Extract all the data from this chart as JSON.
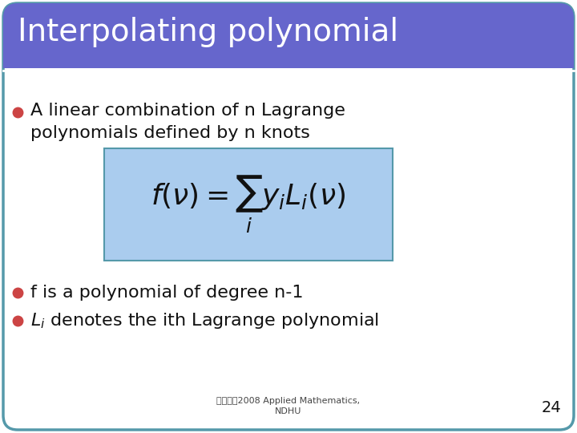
{
  "title": "Interpolating polynomial",
  "title_bg_color": "#6666CC",
  "title_text_color": "#FFFFFF",
  "slide_bg_color": "#FFFFFF",
  "slide_border_color": "#5599AA",
  "bullet_color": "#CC4444",
  "bullet1_text": "A linear combination of n Lagrange\npolynomials defined by n knots",
  "formula": "$f(\\nu) = \\sum_i y_i L_i(\\nu)$",
  "formula_box_color": "#AACCEE",
  "bullet2_text": "f is a polynomial of degree n-1",
  "bullet3_line1": "$L_i$",
  "bullet3_line2": "denotes the ith Lagrange polynomial",
  "footer_text": "数値方法2008 Applied Mathematics,\nNDHU",
  "page_number": "24",
  "body_text_color": "#111111",
  "footer_text_color": "#444444"
}
